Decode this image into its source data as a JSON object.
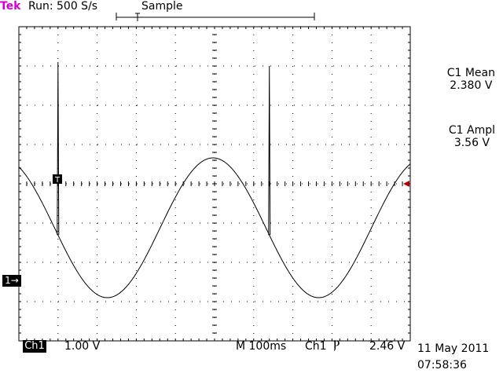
{
  "header": {
    "brand": "Tek",
    "run_status": "Run: 500 S/s",
    "acq_mode": "Sample"
  },
  "measurements": [
    {
      "label": "C1 Mean",
      "value": "2.380 V"
    },
    {
      "label": "C1 Ampl",
      "value": "3.56 V"
    }
  ],
  "footer": {
    "channel": "Ch1",
    "volts_per_div": "1.00 V",
    "timebase": "M 100ms",
    "trigger_source": "Ch1",
    "trigger_slope_icon": "falling-edge-icon",
    "trigger_slope_glyph": "Ⲣ",
    "trigger_level": "2.46 V",
    "date": "11 May 2011",
    "time": "07:58:36"
  },
  "markers": {
    "channel_ground": "1→",
    "trigger_point": "T"
  },
  "colors": {
    "brand": "#d000d0",
    "trace": "#000000",
    "grid": "#000000"
  },
  "chart_data": {
    "type": "line",
    "title": "",
    "xlabel": "",
    "ylabel": "",
    "grid": true,
    "x_units": "ms",
    "y_units": "V",
    "xlim": [
      0,
      1000
    ],
    "ylim": [
      -0.5,
      7.5
    ],
    "sine": {
      "mean_V": 2.38,
      "amplitude_pp_V": 3.56,
      "period_ms": 540,
      "phase_peak_ms": 496
    },
    "spikes": [
      {
        "x_ms": 100,
        "peak_V": 6.6
      },
      {
        "x_ms": 640,
        "peak_V": 6.5
      }
    ],
    "trigger_level_V": 2.46
  }
}
